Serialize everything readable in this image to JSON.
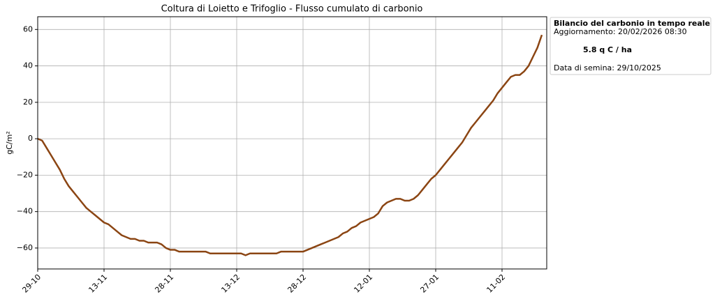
{
  "chart_data": {
    "type": "line",
    "title": "Coltura di Loietto e Trifoglio - Flusso cumulato di carbonio",
    "y_label": "gC/m²",
    "x": [
      "29-10",
      "30-10",
      "31-10",
      "01-11",
      "02-11",
      "03-11",
      "04-11",
      "05-11",
      "06-11",
      "07-11",
      "08-11",
      "09-11",
      "10-11",
      "11-11",
      "12-11",
      "13-11",
      "14-11",
      "15-11",
      "16-11",
      "17-11",
      "18-11",
      "19-11",
      "20-11",
      "21-11",
      "22-11",
      "23-11",
      "24-11",
      "25-11",
      "26-11",
      "27-11",
      "28-11",
      "29-11",
      "30-11",
      "01-12",
      "02-12",
      "03-12",
      "04-12",
      "05-12",
      "06-12",
      "07-12",
      "08-12",
      "09-12",
      "10-12",
      "11-12",
      "12-12",
      "13-12",
      "14-12",
      "15-12",
      "16-12",
      "17-12",
      "18-12",
      "19-12",
      "20-12",
      "21-12",
      "22-12",
      "23-12",
      "24-12",
      "25-12",
      "26-12",
      "27-12",
      "28-12",
      "29-12",
      "30-12",
      "31-12",
      "01-01",
      "02-01",
      "03-01",
      "04-01",
      "05-01",
      "06-01",
      "07-01",
      "08-01",
      "09-01",
      "10-01",
      "11-01",
      "12-01",
      "13-01",
      "14-01",
      "15-01",
      "16-01",
      "17-01",
      "18-01",
      "19-01",
      "20-01",
      "21-01",
      "22-01",
      "23-01",
      "24-01",
      "25-01",
      "26-01",
      "27-01",
      "28-01",
      "29-01",
      "30-01",
      "31-01",
      "01-02",
      "02-02",
      "03-02",
      "04-02",
      "05-02",
      "06-02",
      "07-02",
      "08-02",
      "09-02",
      "10-02",
      "11-02",
      "12-02",
      "13-02",
      "14-02",
      "15-02",
      "16-02",
      "17-02",
      "18-02",
      "19-02",
      "20-02"
    ],
    "series": [
      {
        "name": "Flusso cumulato",
        "color": "#8b4513",
        "values": [
          0,
          -1,
          -5,
          -9,
          -13,
          -17,
          -22,
          -26,
          -29,
          -32,
          -35,
          -38,
          -40,
          -42,
          -44,
          -46,
          -47,
          -49,
          -51,
          -53,
          -54,
          -55,
          -55,
          -56,
          -56,
          -57,
          -57,
          -57,
          -58,
          -60,
          -61,
          -61,
          -62,
          -62,
          -62,
          -62,
          -62,
          -62,
          -62,
          -63,
          -63,
          -63,
          -63,
          -63,
          -63,
          -63,
          -63,
          -64,
          -63,
          -63,
          -63,
          -63,
          -63,
          -63,
          -63,
          -62,
          -62,
          -62,
          -62,
          -62,
          -62,
          -61,
          -60,
          -59,
          -58,
          -57,
          -56,
          -55,
          -54,
          -52,
          -51,
          -49,
          -48,
          -46,
          -45,
          -44,
          -43,
          -41,
          -37,
          -35,
          -34,
          -33,
          -33,
          -34,
          -34,
          -33,
          -31,
          -28,
          -25,
          -22,
          -20,
          -17,
          -14,
          -11,
          -8,
          -5,
          -2,
          2,
          6,
          9,
          12,
          15,
          18,
          21,
          25,
          28,
          31,
          34,
          35,
          35,
          37,
          40,
          45,
          50,
          57
        ]
      }
    ],
    "xticks": [
      "29-10",
      "13-11",
      "28-11",
      "13-12",
      "28-12",
      "12-01",
      "27-01",
      "11-02"
    ],
    "ylim": [
      -71.5,
      67
    ],
    "yticks": [
      {
        "value": -60,
        "label": "−60"
      },
      {
        "value": -40,
        "label": "−40"
      },
      {
        "value": -20,
        "label": "−20"
      },
      0,
      20,
      40,
      60
    ],
    "grid": true,
    "info_box": {
      "title": "Bilancio del carbonio in tempo reale",
      "updated": "Aggiornamento: 20/02/2026 08:30",
      "value_text": "5.8 q C / ha",
      "sowing": "Data di semina: 29/10/2025"
    }
  }
}
